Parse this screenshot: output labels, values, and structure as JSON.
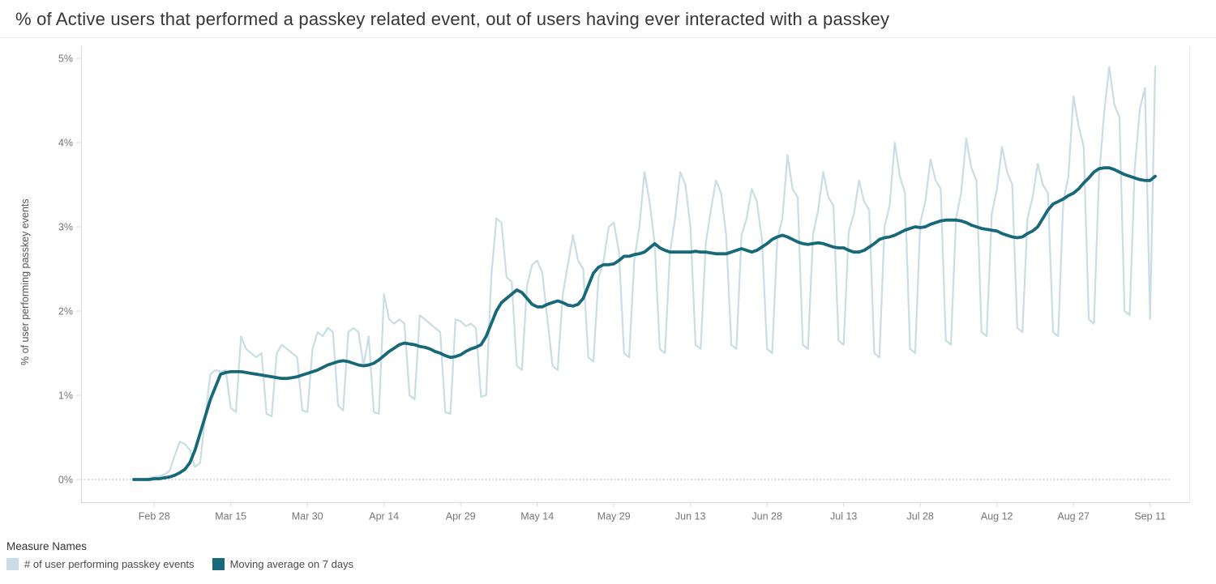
{
  "title": "% of Active users that performed a passkey related event, out of users having ever interacted with a passkey",
  "chart_data": {
    "type": "line",
    "title": "% of Active users that performed a passkey related event, out of users having ever interacted with a passkey",
    "xlabel": "",
    "ylabel": "% of user performing passkey events",
    "ylim": [
      0,
      5
    ],
    "y_ticks": [
      "0%",
      "1%",
      "2%",
      "3%",
      "4%",
      "5%"
    ],
    "grid": "zero-line-dotted-only",
    "legend_title": "Measure Names",
    "legend_position": "bottom-left",
    "x_start_date": "Feb 24",
    "x_unit": "day",
    "x_ticks": [
      {
        "label": "Feb 28",
        "day_index": 4
      },
      {
        "label": "Mar 15",
        "day_index": 19
      },
      {
        "label": "Mar 30",
        "day_index": 34
      },
      {
        "label": "Apr 14",
        "day_index": 49
      },
      {
        "label": "Apr 29",
        "day_index": 64
      },
      {
        "label": "May 14",
        "day_index": 79
      },
      {
        "label": "May 29",
        "day_index": 94
      },
      {
        "label": "Jun 13",
        "day_index": 109
      },
      {
        "label": "Jun 28",
        "day_index": 124
      },
      {
        "label": "Jul 13",
        "day_index": 139
      },
      {
        "label": "Jul 28",
        "day_index": 154
      },
      {
        "label": "Aug 12",
        "day_index": 169
      },
      {
        "label": "Aug 27",
        "day_index": 184
      },
      {
        "label": "Sep 11",
        "day_index": 199
      }
    ],
    "series": [
      {
        "name": "# of user performing passkey events",
        "color": "#c8dde4",
        "width": 2.2,
        "values": [
          0.0,
          0.0,
          0.0,
          0.02,
          0.03,
          0.04,
          0.06,
          0.1,
          0.28,
          0.45,
          0.42,
          0.35,
          0.15,
          0.2,
          0.75,
          1.25,
          1.3,
          1.28,
          1.3,
          0.85,
          0.8,
          1.7,
          1.55,
          1.5,
          1.45,
          1.5,
          0.78,
          0.75,
          1.5,
          1.6,
          1.55,
          1.5,
          1.45,
          0.82,
          0.8,
          1.55,
          1.75,
          1.7,
          1.8,
          1.75,
          0.88,
          0.82,
          1.75,
          1.8,
          1.75,
          1.35,
          1.7,
          0.8,
          0.78,
          2.2,
          1.9,
          1.85,
          1.9,
          1.85,
          1.0,
          0.95,
          1.95,
          1.9,
          1.85,
          1.8,
          1.75,
          0.8,
          0.78,
          1.9,
          1.88,
          1.82,
          1.85,
          1.8,
          0.98,
          1.0,
          2.4,
          3.1,
          3.05,
          2.4,
          2.35,
          1.35,
          1.3,
          2.3,
          2.55,
          2.6,
          2.45,
          1.9,
          1.35,
          1.3,
          2.2,
          2.55,
          2.9,
          2.6,
          2.5,
          1.45,
          1.4,
          2.4,
          2.6,
          3.0,
          3.05,
          2.7,
          1.5,
          1.45,
          2.6,
          3.0,
          3.65,
          3.3,
          2.8,
          1.55,
          1.5,
          2.7,
          3.1,
          3.65,
          3.5,
          3.0,
          1.6,
          1.55,
          2.8,
          3.2,
          3.55,
          3.4,
          2.9,
          1.6,
          1.55,
          2.9,
          3.1,
          3.45,
          3.3,
          2.85,
          1.55,
          1.5,
          2.85,
          3.1,
          3.85,
          3.45,
          3.35,
          1.6,
          1.55,
          2.9,
          3.2,
          3.65,
          3.35,
          3.25,
          1.65,
          1.6,
          2.95,
          3.15,
          3.55,
          3.3,
          3.2,
          1.5,
          1.45,
          3.0,
          3.25,
          4.0,
          3.6,
          3.4,
          1.55,
          1.5,
          3.05,
          3.3,
          3.8,
          3.55,
          3.45,
          1.65,
          1.6,
          3.1,
          3.4,
          4.05,
          3.7,
          3.55,
          1.75,
          1.7,
          3.15,
          3.45,
          3.95,
          3.65,
          3.5,
          1.8,
          1.75,
          3.1,
          3.35,
          3.75,
          3.5,
          3.4,
          1.75,
          1.7,
          3.3,
          3.6,
          4.55,
          4.2,
          3.95,
          1.9,
          1.85,
          3.6,
          4.35,
          4.9,
          4.45,
          4.3,
          2.0,
          1.95,
          3.7,
          4.4,
          4.65,
          1.9,
          4.9
        ]
      },
      {
        "name": "Moving average on 7 days",
        "color": "#176878",
        "width": 3.8,
        "values": [
          0.0,
          0.0,
          0.0,
          0.0,
          0.01,
          0.01,
          0.02,
          0.03,
          0.05,
          0.08,
          0.12,
          0.2,
          0.35,
          0.55,
          0.75,
          0.95,
          1.1,
          1.25,
          1.27,
          1.28,
          1.28,
          1.28,
          1.27,
          1.26,
          1.25,
          1.24,
          1.23,
          1.22,
          1.21,
          1.2,
          1.2,
          1.21,
          1.22,
          1.24,
          1.26,
          1.28,
          1.3,
          1.33,
          1.36,
          1.38,
          1.4,
          1.41,
          1.4,
          1.38,
          1.36,
          1.35,
          1.36,
          1.38,
          1.42,
          1.47,
          1.52,
          1.56,
          1.6,
          1.62,
          1.61,
          1.6,
          1.58,
          1.57,
          1.55,
          1.52,
          1.5,
          1.47,
          1.45,
          1.46,
          1.48,
          1.52,
          1.55,
          1.57,
          1.6,
          1.7,
          1.85,
          2.0,
          2.1,
          2.15,
          2.2,
          2.25,
          2.22,
          2.15,
          2.08,
          2.05,
          2.05,
          2.08,
          2.1,
          2.12,
          2.1,
          2.07,
          2.06,
          2.08,
          2.15,
          2.3,
          2.45,
          2.52,
          2.55,
          2.55,
          2.56,
          2.6,
          2.65,
          2.65,
          2.67,
          2.68,
          2.7,
          2.75,
          2.8,
          2.75,
          2.72,
          2.7,
          2.7,
          2.7,
          2.7,
          2.7,
          2.71,
          2.7,
          2.7,
          2.69,
          2.68,
          2.68,
          2.68,
          2.7,
          2.72,
          2.74,
          2.72,
          2.7,
          2.72,
          2.76,
          2.8,
          2.85,
          2.88,
          2.9,
          2.88,
          2.85,
          2.82,
          2.8,
          2.79,
          2.8,
          2.81,
          2.8,
          2.78,
          2.76,
          2.75,
          2.75,
          2.72,
          2.7,
          2.7,
          2.72,
          2.76,
          2.8,
          2.85,
          2.87,
          2.88,
          2.9,
          2.93,
          2.96,
          2.98,
          3.0,
          2.99,
          3.0,
          3.03,
          3.05,
          3.07,
          3.08,
          3.08,
          3.08,
          3.07,
          3.05,
          3.02,
          3.0,
          2.98,
          2.97,
          2.96,
          2.95,
          2.92,
          2.9,
          2.88,
          2.87,
          2.88,
          2.92,
          2.95,
          3.0,
          3.1,
          3.2,
          3.27,
          3.3,
          3.33,
          3.37,
          3.4,
          3.45,
          3.52,
          3.58,
          3.65,
          3.69,
          3.7,
          3.7,
          3.68,
          3.65,
          3.62,
          3.6,
          3.58,
          3.56,
          3.55,
          3.55,
          3.6
        ]
      }
    ]
  }
}
